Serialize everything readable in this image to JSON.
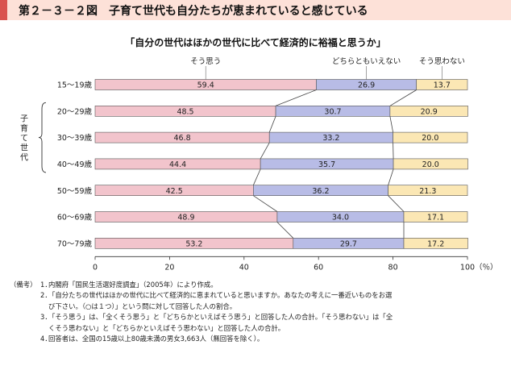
{
  "figure_title": "第２－３－２図　子育て世代も自分たちが恵まれていると感じている",
  "chart_data": {
    "type": "bar",
    "orientation": "horizontal",
    "stacked": true,
    "title": "「自分の世代はほかの世代に比べて経済的に裕福と思うか」",
    "categories": [
      "15～19歳",
      "20～29歳",
      "30～39歳",
      "40～49歳",
      "50～59歳",
      "60～69歳",
      "70～79歳"
    ],
    "series": [
      {
        "name": "そう思う",
        "color": "#f2c4cc",
        "values": [
          59.4,
          48.5,
          46.8,
          44.4,
          42.5,
          48.9,
          53.2
        ]
      },
      {
        "name": "どちらともいえない",
        "color": "#b8bce6",
        "values": [
          26.9,
          30.7,
          33.2,
          35.7,
          36.2,
          34.0,
          29.7
        ]
      },
      {
        "name": "そう思わない",
        "color": "#fbe7b4",
        "values": [
          13.7,
          20.9,
          20.0,
          20.0,
          21.3,
          17.1,
          17.2
        ]
      }
    ],
    "value_labels": [
      [
        "59.4",
        "26.9",
        "13.7"
      ],
      [
        "48.5",
        "30.7",
        "20.9"
      ],
      [
        "46.8",
        "33.2",
        "20.0"
      ],
      [
        "44.4",
        "35.7",
        "20.0"
      ],
      [
        "42.5",
        "36.2",
        "21.3"
      ],
      [
        "48.9",
        "34.0",
        "17.1"
      ],
      [
        "53.2",
        "29.7",
        "17.2"
      ]
    ],
    "xlim": [
      0,
      100
    ],
    "x_ticks": [
      "0",
      "20",
      "40",
      "60",
      "80",
      "100"
    ],
    "x_unit": "（％）",
    "group_label": "子育て世代",
    "group_rows": [
      1,
      3
    ],
    "legend_placement": "top",
    "grid": false
  },
  "notes": {
    "label": "（備考）",
    "items": [
      {
        "num": "1．",
        "lines": [
          "内閣府「国民生活選好度調査」（2005年）により作成。"
        ]
      },
      {
        "num": "2．",
        "lines": [
          "「自分たちの世代はほかの世代に比べて経済的に恵まれていると思いますか。あなたの考えに一番近いものをお選",
          "び下さい。（○は１つ）」という問に対して回答した人の割合。"
        ]
      },
      {
        "num": "3．",
        "lines": [
          "「そう思う」は、「全くそう思う」と「どちらかといえばそう思う」と回答した人の合計。「そう思わない」は「全",
          "くそう思わない」と「どちらかといえばそう思わない」と回答した人の合計。"
        ]
      },
      {
        "num": "4．",
        "lines": [
          "回答者は、全国の15歳以上80歳未満の男女3,663人（無回答を除く）。"
        ]
      }
    ]
  }
}
